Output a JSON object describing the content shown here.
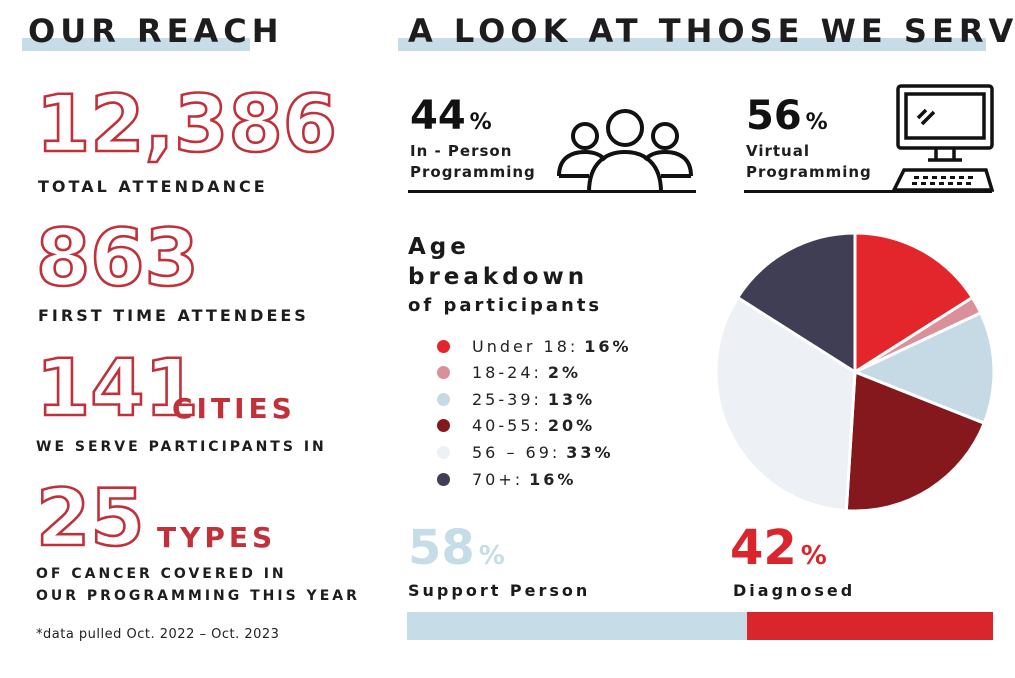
{
  "left": {
    "header": "OUR REACH",
    "total_attendance": {
      "value": "12,386",
      "label": "TOTAL ATTENDANCE"
    },
    "first_time": {
      "value": "863",
      "label": "FIRST TIME ATTENDEES"
    },
    "cities": {
      "value": "141",
      "unit": "CITIES",
      "label": "WE SERVE PARTICIPANTS IN"
    },
    "cancer_types": {
      "value": "25",
      "unit": "TYPES",
      "label_line1": "OF CANCER COVERED IN",
      "label_line2": "OUR PROGRAMMING THIS YEAR"
    },
    "footnote": "*data pulled Oct. 2022 – Oct. 2023"
  },
  "right": {
    "header": "A LOOK AT THOSE WE SERVE",
    "in_person": {
      "value": "44",
      "symbol": "%",
      "line1": "In - Person",
      "line2": "Programming",
      "icon": "people-group-icon"
    },
    "virtual": {
      "value": "56",
      "symbol": "%",
      "line1": "Virtual",
      "line2": "Programming",
      "icon": "desktop-computer-icon"
    },
    "age_title_1": "Age",
    "age_title_2": "breakdown",
    "age_title_3": "of participants",
    "support": {
      "value": "58",
      "symbol": "%",
      "label": "Support Person",
      "share": 58
    },
    "diagnosed": {
      "value": "42",
      "symbol": "%",
      "label": "Diagnosed",
      "share": 42
    }
  },
  "colors": {
    "red_outline": "#c0313a",
    "header_bar": "#c7dce6",
    "support_blue": "#c6dce6",
    "diagnosed_red": "#d9262d"
  },
  "chart_data": {
    "type": "pie",
    "title": "Age breakdown of participants",
    "legend_position": "left",
    "series": [
      {
        "name": "Under 18:",
        "value": 16,
        "label": "16%",
        "color": "#e3262b"
      },
      {
        "name": "18-24:",
        "value": 2,
        "label": "2%",
        "color": "#d9909a"
      },
      {
        "name": "25-39:",
        "value": 13,
        "label": "13%",
        "color": "#c6dae6"
      },
      {
        "name": "40-55:",
        "value": 20,
        "label": "20%",
        "color": "#84181c"
      },
      {
        "name": "56 – 69:",
        "value": 33,
        "label": "33%",
        "color": "#edf1f5"
      },
      {
        "name": "70+:",
        "value": 16,
        "label": "16%",
        "color": "#3f3e54"
      }
    ]
  }
}
